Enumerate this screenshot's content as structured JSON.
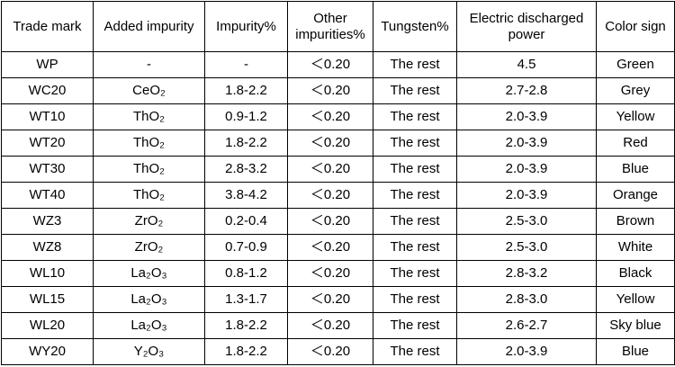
{
  "table": {
    "header": [
      "Trade mark",
      "Added impurity",
      "Impurity%",
      "Other impurities%",
      "Tungsten%",
      "Electric discharged power",
      "Color sign"
    ],
    "rows": [
      [
        "WP",
        "-",
        "-",
        "＜0.20",
        "The rest",
        "4.5",
        "Green"
      ],
      [
        "WC20",
        "CeO₂",
        "1.8-2.2",
        "＜0.20",
        "The rest",
        "2.7-2.8",
        "Grey"
      ],
      [
        "WT10",
        "ThO₂",
        "0.9-1.2",
        "＜0.20",
        "The rest",
        "2.0-3.9",
        "Yellow"
      ],
      [
        "WT20",
        "ThO₂",
        "1.8-2.2",
        "＜0.20",
        "The rest",
        "2.0-3.9",
        "Red"
      ],
      [
        "WT30",
        "ThO₂",
        "2.8-3.2",
        "＜0.20",
        "The rest",
        "2.0-3.9",
        "Blue"
      ],
      [
        "WT40",
        "ThO₂",
        "3.8-4.2",
        "＜0.20",
        "The rest",
        "2.0-3.9",
        "Orange"
      ],
      [
        "WZ3",
        "ZrO₂",
        "0.2-0.4",
        "＜0.20",
        "The rest",
        "2.5-3.0",
        "Brown"
      ],
      [
        "WZ8",
        "ZrO₂",
        "0.7-0.9",
        "＜0.20",
        "The rest",
        "2.5-3.0",
        "White"
      ],
      [
        "WL10",
        "La₂O₃",
        "0.8-1.2",
        "＜0.20",
        "The rest",
        "2.8-3.2",
        "Black"
      ],
      [
        "WL15",
        "La₂O₃",
        "1.3-1.7",
        "＜0.20",
        "The rest",
        "2.8-3.0",
        "Yellow"
      ],
      [
        "WL20",
        "La₂O₃",
        "1.8-2.2",
        "＜0.20",
        "The rest",
        "2.6-2.7",
        "Sky blue"
      ],
      [
        "WY20",
        "Y₂O₃",
        "1.8-2.2",
        "＜0.20",
        "The rest",
        "2.0-3.9",
        "Blue"
      ]
    ]
  }
}
